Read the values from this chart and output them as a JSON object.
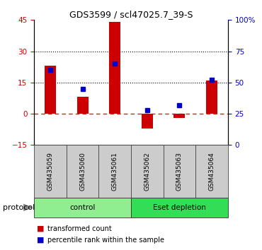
{
  "title": "GDS3599 / scl47025.7_39-S",
  "samples": [
    "GSM435059",
    "GSM435060",
    "GSM435061",
    "GSM435062",
    "GSM435063",
    "GSM435064"
  ],
  "transformed_counts": [
    23,
    8,
    44,
    -7,
    -2,
    16
  ],
  "percentile_ranks": [
    60,
    45,
    65,
    28,
    32,
    52
  ],
  "left_ylim": [
    -15,
    45
  ],
  "left_yticks": [
    -15,
    0,
    15,
    30,
    45
  ],
  "right_ylim": [
    0,
    100
  ],
  "right_yticks": [
    0,
    25,
    50,
    75,
    100
  ],
  "right_yticklabels": [
    "0",
    "25",
    "50",
    "75",
    "100%"
  ],
  "bar_color": "#cc0000",
  "dot_color": "#0000cc",
  "protocol_groups": [
    {
      "label": "control",
      "indices": [
        0,
        1,
        2
      ],
      "color": "#90ee90"
    },
    {
      "label": "Eset depletion",
      "indices": [
        3,
        4,
        5
      ],
      "color": "#33dd55"
    }
  ],
  "protocol_label": "protocol",
  "legend_items": [
    {
      "color": "#cc0000",
      "label": "transformed count"
    },
    {
      "color": "#0000cc",
      "label": "percentile rank within the sample"
    }
  ],
  "bar_width": 0.35,
  "dot_size": 5,
  "sample_box_color": "#cccccc",
  "sample_font_size": 6.5,
  "protocol_font_size": 7.5,
  "legend_font_size": 7
}
